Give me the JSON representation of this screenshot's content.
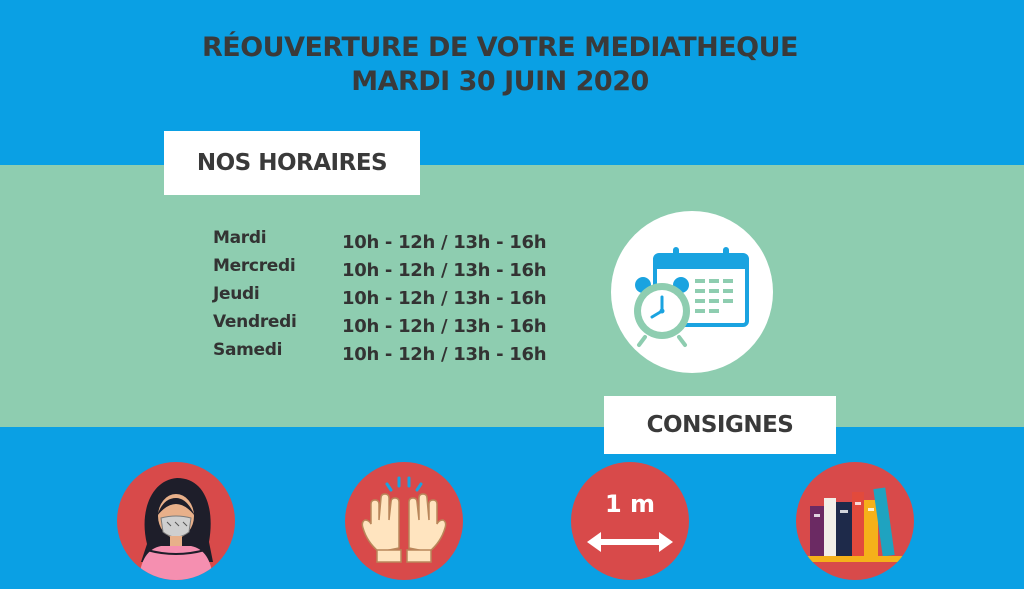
{
  "header": {
    "title_line1": "RÉOUVERTURE DE VOTRE MEDIATHEQUE",
    "title_line2": "MARDI 30 JUIN 2020"
  },
  "schedule": {
    "heading": "NOS HORAIRES",
    "rows": [
      {
        "day": "Mardi",
        "hours": "10h - 12h / 13h - 16h"
      },
      {
        "day": "Mercredi",
        "hours": "10h - 12h / 13h - 16h"
      },
      {
        "day": "Jeudi",
        "hours": "10h - 12h / 13h - 16h"
      },
      {
        "day": "Vendredi",
        "hours": "10h - 12h / 13h - 16h"
      },
      {
        "day": "Samedi",
        "hours": "10h - 12h / 13h - 16h"
      }
    ],
    "icon": "calendar-clock-icon"
  },
  "guidelines": {
    "heading": "CONSIGNES",
    "items": [
      {
        "icon": "face-mask-woman-icon"
      },
      {
        "icon": "wash-hands-icon"
      },
      {
        "icon": "distance-icon",
        "label": "1 m"
      },
      {
        "icon": "books-icon"
      }
    ]
  },
  "colors": {
    "background_blue": "#0aa0e4",
    "band_green": "#8ecdb0",
    "circle_red": "#d84a4a",
    "text_dark": "#3a3a3a"
  }
}
